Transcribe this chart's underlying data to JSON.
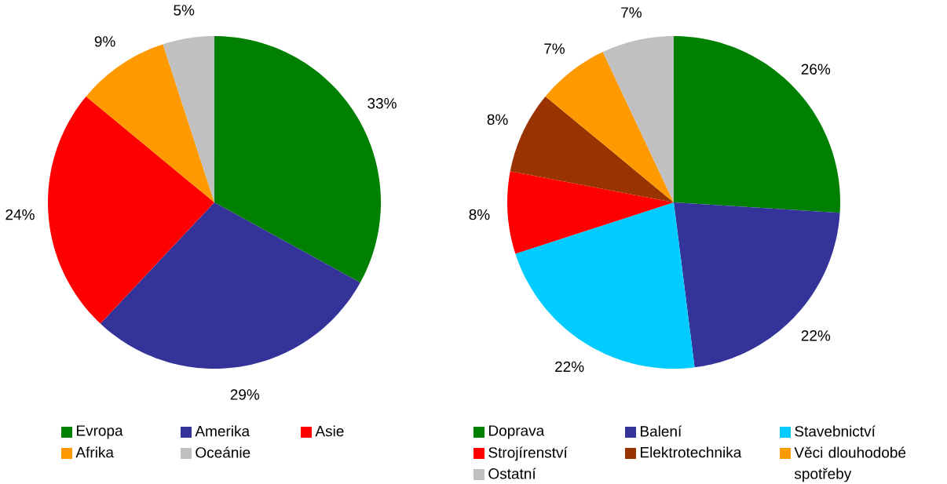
{
  "chart_data": [
    {
      "type": "pie",
      "categories": [
        "Evropa",
        "Amerika",
        "Asie",
        "Afrika",
        "Oceánie"
      ],
      "values": [
        33,
        29,
        24,
        9,
        5
      ],
      "colors": [
        "#008000",
        "#333399",
        "#ff0000",
        "#ff9900",
        "#c0c0c0"
      ],
      "value_labels": [
        "33%",
        "29%",
        "24%",
        "9%",
        "5%"
      ],
      "legend": "bottom"
    },
    {
      "type": "pie",
      "categories": [
        "Doprava",
        "Balení",
        "Stavebnictví",
        "Strojírenství",
        "Elektrotechnika",
        "Věci dlouhodobé spotřeby",
        "Ostatní"
      ],
      "values": [
        26,
        22,
        22,
        8,
        8,
        7,
        7
      ],
      "colors": [
        "#008000",
        "#333399",
        "#00ccff",
        "#ff0000",
        "#993300",
        "#ff9900",
        "#c0c0c0"
      ],
      "value_labels": [
        "26%",
        "22%",
        "22%",
        "8%",
        "8%",
        "7%",
        "7%"
      ],
      "legend": "bottom"
    }
  ]
}
